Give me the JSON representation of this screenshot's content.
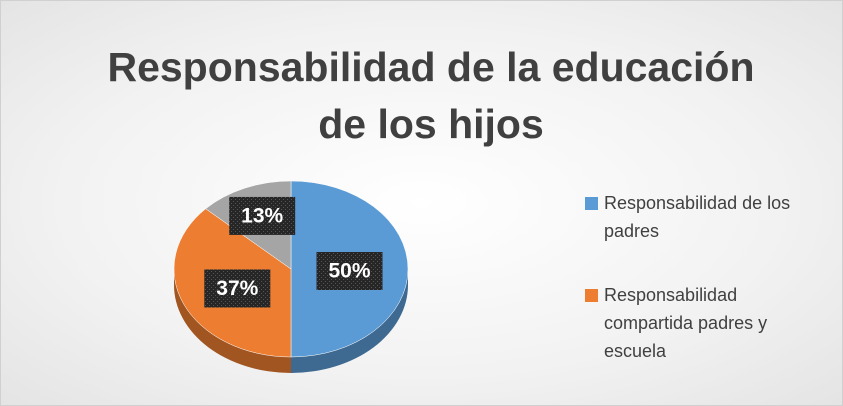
{
  "chart_data": {
    "type": "pie",
    "title": "Responsabilidad de la educación de los hijos",
    "categories": [
      "Responsabilidad de los padres",
      "Responsabilidad compartida padres y escuela",
      null
    ],
    "values": [
      50,
      37,
      13
    ],
    "value_labels": [
      "50%",
      "37%",
      "13%"
    ],
    "colors": [
      "#5b9bd5",
      "#ed7d31",
      "#a5a5a5"
    ],
    "legend": "right"
  }
}
